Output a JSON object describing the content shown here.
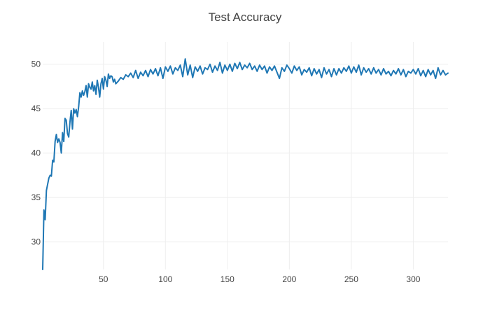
{
  "chart_data": {
    "type": "line",
    "title": "Test Accuracy",
    "xlabel": "",
    "ylabel": "",
    "xlim": [
      1,
      328
    ],
    "ylim": [
      26.9,
      52.5
    ],
    "x_ticks": [
      50,
      100,
      150,
      200,
      250,
      300
    ],
    "y_ticks": [
      30,
      35,
      40,
      45,
      50
    ],
    "grid": true,
    "legend": "none",
    "series": [
      {
        "color": "#1f77b4",
        "points": [
          [
            1,
            26.9
          ],
          [
            2,
            33.6
          ],
          [
            3,
            32.5
          ],
          [
            4,
            35.8
          ],
          [
            5,
            36.5
          ],
          [
            6,
            37.2
          ],
          [
            7,
            37.5
          ],
          [
            8,
            37.4
          ],
          [
            9,
            39.2
          ],
          [
            10,
            39.0
          ],
          [
            11,
            41.3
          ],
          [
            12,
            42.1
          ],
          [
            13,
            41.2
          ],
          [
            14,
            41.6
          ],
          [
            15,
            41.2
          ],
          [
            16,
            40.0
          ],
          [
            17,
            42.3
          ],
          [
            18,
            41.3
          ],
          [
            19,
            43.9
          ],
          [
            20,
            43.7
          ],
          [
            21,
            42.2
          ],
          [
            22,
            41.8
          ],
          [
            23,
            43.5
          ],
          [
            24,
            44.8
          ],
          [
            25,
            42.7
          ],
          [
            26,
            45.0
          ],
          [
            27,
            44.5
          ],
          [
            28,
            44.9
          ],
          [
            29,
            44.1
          ],
          [
            30,
            45.2
          ],
          [
            31,
            46.8
          ],
          [
            32,
            46.3
          ],
          [
            33,
            47.0
          ],
          [
            34,
            46.5
          ],
          [
            35,
            46.9
          ],
          [
            36,
            47.6
          ],
          [
            37,
            46.3
          ],
          [
            38,
            47.8
          ],
          [
            39,
            47.4
          ],
          [
            40,
            47.2
          ],
          [
            41,
            48.0
          ],
          [
            42,
            47.0
          ],
          [
            43,
            47.6
          ],
          [
            44,
            46.6
          ],
          [
            45,
            48.2
          ],
          [
            46,
            47.4
          ],
          [
            47,
            46.3
          ],
          [
            48,
            47.8
          ],
          [
            49,
            48.4
          ],
          [
            50,
            47.2
          ],
          [
            51,
            48.6
          ],
          [
            52,
            48.2
          ],
          [
            53,
            47.5
          ],
          [
            54,
            48.9
          ],
          [
            55,
            48.4
          ],
          [
            56,
            48.7
          ],
          [
            57,
            48.6
          ],
          [
            58,
            48.0
          ],
          [
            59,
            48.3
          ],
          [
            60,
            47.8
          ],
          [
            62,
            48.1
          ],
          [
            64,
            48.5
          ],
          [
            66,
            48.3
          ],
          [
            68,
            48.8
          ],
          [
            70,
            48.6
          ],
          [
            72,
            49.0
          ],
          [
            74,
            48.5
          ],
          [
            76,
            49.3
          ],
          [
            78,
            48.4
          ],
          [
            80,
            49.1
          ],
          [
            82,
            48.7
          ],
          [
            84,
            49.3
          ],
          [
            86,
            48.6
          ],
          [
            88,
            49.4
          ],
          [
            90,
            48.9
          ],
          [
            92,
            49.5
          ],
          [
            94,
            48.7
          ],
          [
            96,
            49.6
          ],
          [
            98,
            48.4
          ],
          [
            100,
            49.7
          ],
          [
            102,
            49.2
          ],
          [
            104,
            49.8
          ],
          [
            106,
            48.9
          ],
          [
            108,
            49.6
          ],
          [
            110,
            49.3
          ],
          [
            112,
            49.9
          ],
          [
            114,
            48.6
          ],
          [
            116,
            50.6
          ],
          [
            118,
            48.8
          ],
          [
            120,
            49.9
          ],
          [
            122,
            48.5
          ],
          [
            124,
            49.7
          ],
          [
            126,
            49.2
          ],
          [
            128,
            49.8
          ],
          [
            130,
            48.9
          ],
          [
            132,
            49.6
          ],
          [
            134,
            49.4
          ],
          [
            136,
            50.0
          ],
          [
            138,
            49.1
          ],
          [
            140,
            49.8
          ],
          [
            142,
            49.3
          ],
          [
            144,
            50.2
          ],
          [
            146,
            49.0
          ],
          [
            148,
            49.9
          ],
          [
            150,
            49.3
          ],
          [
            152,
            50.0
          ],
          [
            154,
            49.2
          ],
          [
            156,
            50.1
          ],
          [
            158,
            49.5
          ],
          [
            160,
            50.2
          ],
          [
            162,
            49.4
          ],
          [
            164,
            49.9
          ],
          [
            166,
            49.6
          ],
          [
            168,
            50.1
          ],
          [
            170,
            49.4
          ],
          [
            172,
            49.8
          ],
          [
            174,
            49.2
          ],
          [
            176,
            49.9
          ],
          [
            178,
            49.4
          ],
          [
            180,
            49.8
          ],
          [
            182,
            49.0
          ],
          [
            184,
            49.7
          ],
          [
            186,
            49.3
          ],
          [
            188,
            49.8
          ],
          [
            190,
            49.1
          ],
          [
            192,
            48.4
          ],
          [
            194,
            49.6
          ],
          [
            196,
            49.2
          ],
          [
            198,
            49.9
          ],
          [
            200,
            49.5
          ],
          [
            202,
            49.0
          ],
          [
            204,
            49.8
          ],
          [
            206,
            49.3
          ],
          [
            208,
            49.7
          ],
          [
            210,
            48.8
          ],
          [
            212,
            49.4
          ],
          [
            214,
            49.1
          ],
          [
            216,
            49.6
          ],
          [
            218,
            48.7
          ],
          [
            220,
            49.5
          ],
          [
            222,
            48.9
          ],
          [
            224,
            49.4
          ],
          [
            226,
            48.5
          ],
          [
            228,
            49.6
          ],
          [
            230,
            48.9
          ],
          [
            232,
            49.4
          ],
          [
            234,
            48.6
          ],
          [
            236,
            49.5
          ],
          [
            238,
            48.8
          ],
          [
            240,
            49.5
          ],
          [
            242,
            49.0
          ],
          [
            244,
            49.6
          ],
          [
            246,
            49.2
          ],
          [
            248,
            49.8
          ],
          [
            250,
            49.0
          ],
          [
            252,
            49.7
          ],
          [
            254,
            49.1
          ],
          [
            256,
            49.9
          ],
          [
            258,
            48.8
          ],
          [
            260,
            49.6
          ],
          [
            262,
            49.1
          ],
          [
            264,
            49.5
          ],
          [
            266,
            48.9
          ],
          [
            268,
            49.6
          ],
          [
            270,
            49.0
          ],
          [
            272,
            49.4
          ],
          [
            274,
            48.8
          ],
          [
            276,
            49.5
          ],
          [
            278,
            48.9
          ],
          [
            280,
            49.2
          ],
          [
            282,
            48.7
          ],
          [
            284,
            49.3
          ],
          [
            286,
            48.9
          ],
          [
            288,
            49.5
          ],
          [
            290,
            48.8
          ],
          [
            292,
            49.4
          ],
          [
            294,
            48.6
          ],
          [
            296,
            49.2
          ],
          [
            298,
            49.0
          ],
          [
            300,
            49.4
          ],
          [
            302,
            48.9
          ],
          [
            304,
            49.5
          ],
          [
            306,
            48.7
          ],
          [
            308,
            49.3
          ],
          [
            310,
            48.6
          ],
          [
            312,
            49.4
          ],
          [
            314,
            48.8
          ],
          [
            316,
            49.3
          ],
          [
            318,
            48.4
          ],
          [
            320,
            49.6
          ],
          [
            322,
            48.8
          ],
          [
            324,
            49.3
          ],
          [
            326,
            48.8
          ],
          [
            328,
            49.0
          ]
        ]
      }
    ]
  }
}
